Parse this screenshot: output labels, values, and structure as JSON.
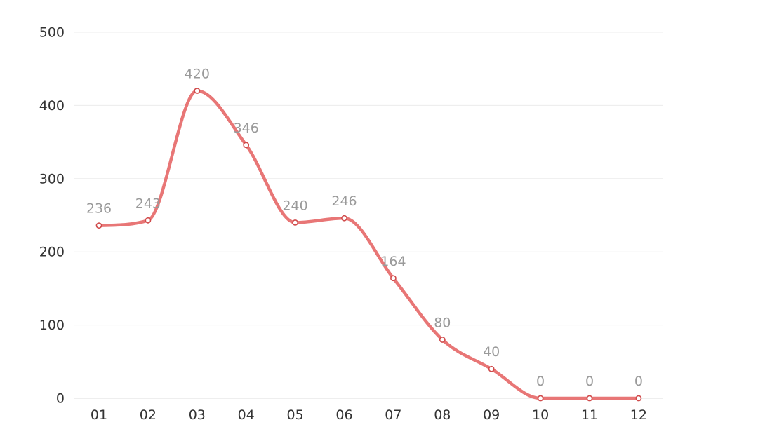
{
  "chart_data": {
    "type": "line",
    "smooth": true,
    "categories": [
      "01",
      "02",
      "03",
      "04",
      "05",
      "06",
      "07",
      "08",
      "09",
      "10",
      "11",
      "12"
    ],
    "series": [
      {
        "values": [
          236,
          243,
          420,
          346,
          240,
          246,
          164,
          80,
          40,
          0,
          0,
          0
        ],
        "color": "#e87676"
      }
    ],
    "ylim": [
      0,
      500
    ],
    "yticks": [
      0,
      100,
      200,
      300,
      400,
      500
    ],
    "show_data_labels": true,
    "grid": "horizontal",
    "title": "",
    "xlabel": "",
    "ylabel": ""
  },
  "colors": {
    "line": "#e87676",
    "point_stroke": "#d04b4b",
    "data_label": "#9a9a9a",
    "tick_label": "#333333",
    "grid": "#ececec"
  }
}
